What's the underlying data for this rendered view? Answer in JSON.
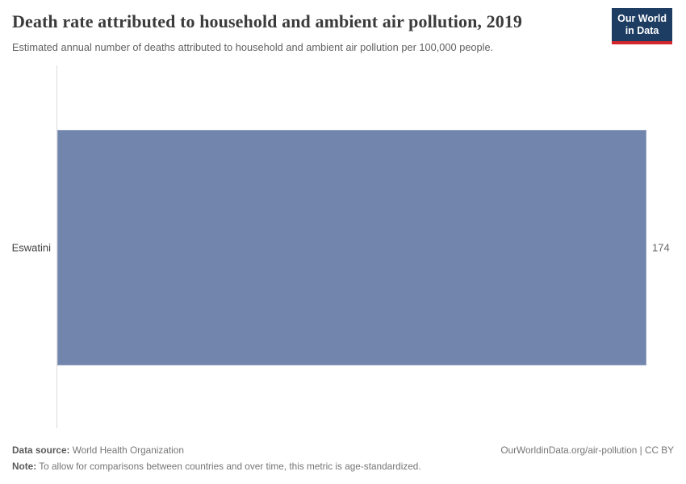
{
  "header": {
    "title": "Death rate attributed to household and ambient air pollution, 2019",
    "subtitle": "Estimated annual number of deaths attributed to household and ambient air pollution per 100,000 people.",
    "logo_line1": "Our World",
    "logo_line2": "in Data"
  },
  "chart_data": {
    "type": "bar",
    "orientation": "horizontal",
    "title": "Death rate attributed to household and ambient air pollution, 2019",
    "categories": [
      "Eswatini"
    ],
    "values": [
      174
    ],
    "value_labels": [
      "174"
    ],
    "xlim": [
      0,
      174
    ],
    "grid": false,
    "legend": "none",
    "bar_color": "#7185ad"
  },
  "footer": {
    "datasource_label": "Data source:",
    "datasource_value": " World Health Organization",
    "note_label": "Note:",
    "note_value": " To allow for comparisons between countries and over time, this metric is age-standardized.",
    "link": "OurWorldinData.org/air-pollution | CC BY"
  },
  "colors": {
    "bar": "#7185ad",
    "logo_background": "#1d3d63",
    "logo_underline": "#d2262c",
    "axis_line": "#dcdcdc",
    "title_text": "#3b3b3b",
    "subtitle_text": "#616161",
    "footer_text": "#757575"
  }
}
